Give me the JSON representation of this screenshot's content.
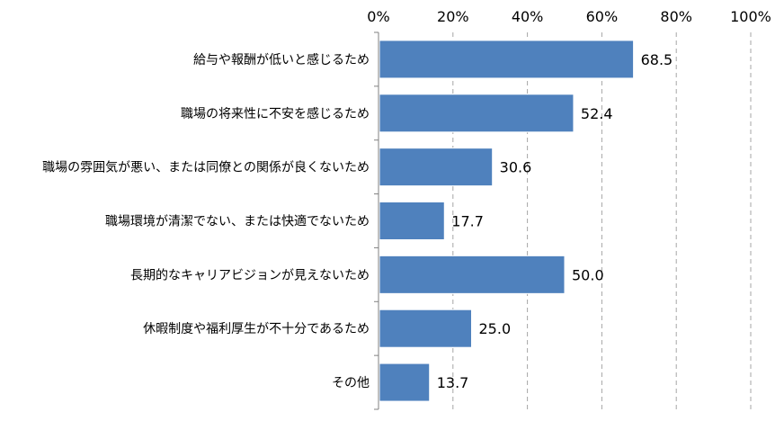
{
  "colors": {
    "bar_fill": "#4f81bd",
    "bar_stroke": "#ffffff",
    "grid": "#a6a6a6",
    "axis": "#808080",
    "text": "#000000"
  },
  "chart_data": {
    "type": "bar",
    "orientation": "horizontal",
    "title": "",
    "xlabel": "",
    "ylabel": "",
    "xlim": [
      0,
      100
    ],
    "x_ticks": [
      0,
      20,
      40,
      60,
      80,
      100
    ],
    "x_tick_labels": [
      "0%",
      "20%",
      "40%",
      "60%",
      "80%",
      "100%"
    ],
    "x_axis_position": "top",
    "grid": "vertical dashed",
    "legend": "none",
    "categories": [
      "給与や報酬が低いと感じるため",
      "職場の将来性に不安を感じるため",
      "職場の雰囲気が悪い、または同僚との関係が良くないため",
      "職場環境が清潔でない、または快適でないため",
      "長期的なキャリアビジョンが見えないため",
      "休暇制度や福利厚生が不十分であるため",
      "その他"
    ],
    "values": [
      68.5,
      52.4,
      30.6,
      17.7,
      50.0,
      25.0,
      13.7
    ],
    "value_labels": [
      "68.5",
      "52.4",
      "30.6",
      "17.7",
      "50.0",
      "25.0",
      "13.7"
    ]
  }
}
